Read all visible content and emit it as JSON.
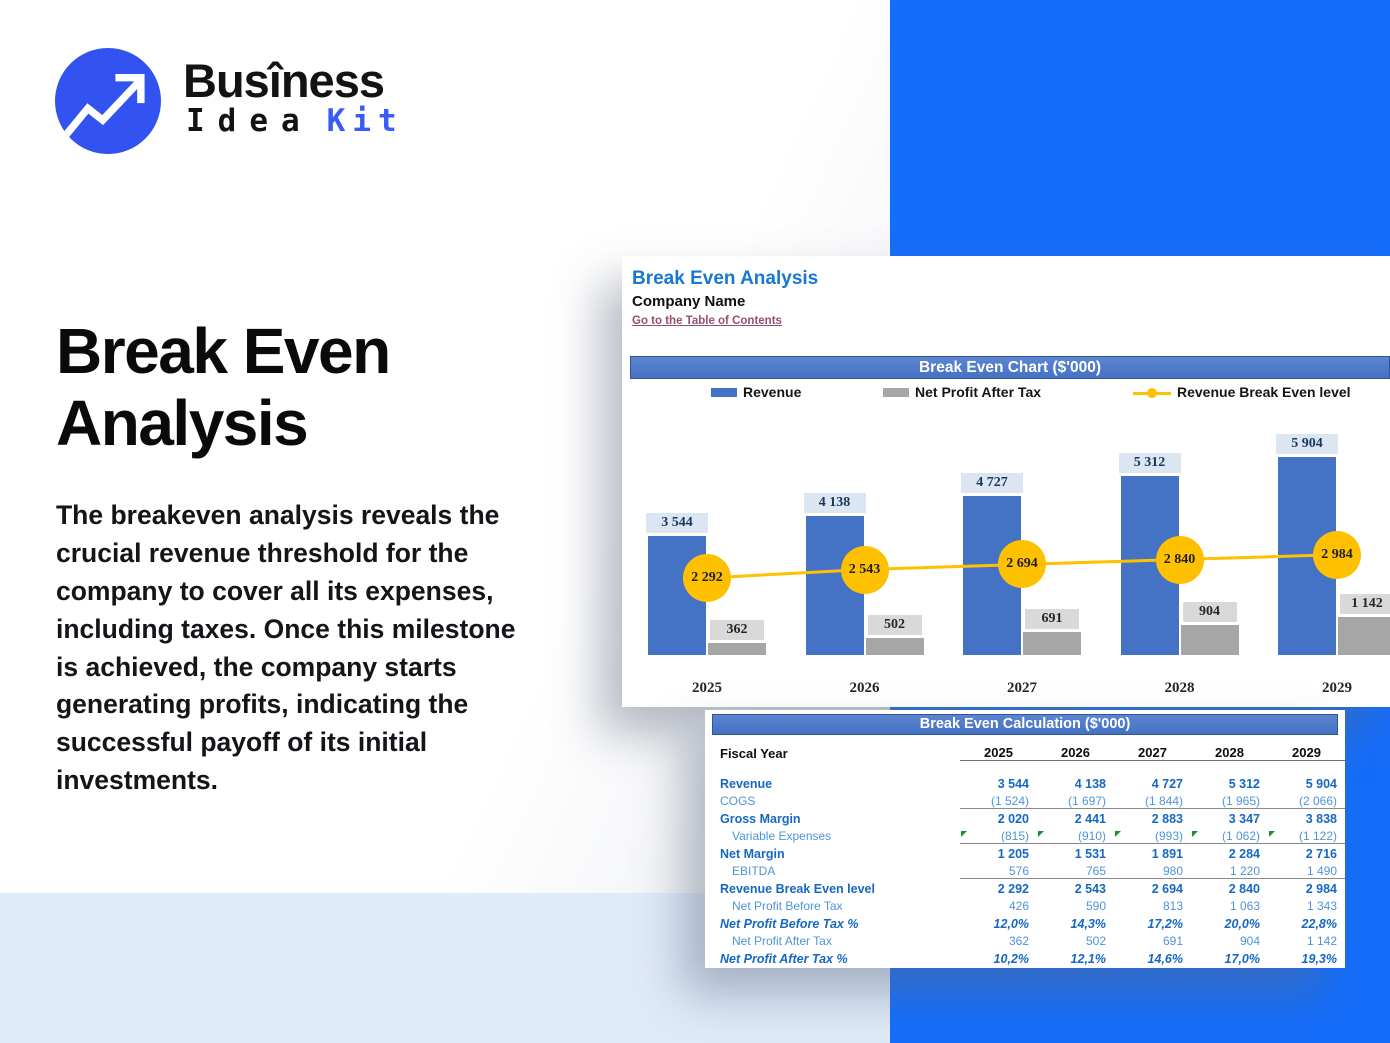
{
  "logo": {
    "brand_top": "Busîness",
    "brand_bottom_dark": "Idea",
    "brand_bottom_accent": "Kit",
    "icon": "trend-arrow-icon",
    "circle_color": "#3353f0",
    "accent_color": "#3b5bf6"
  },
  "hero": {
    "title_lines": [
      "Break Even",
      "Analysis"
    ],
    "description": "The breakeven analysis reveals the crucial revenue threshold for the company to cover all its expenses, including taxes. Once this milestone is achieved, the company starts generating profits, indicating the successful payoff of its initial investments."
  },
  "sheet": {
    "title": "Break Even Analysis",
    "subtitle": "Company Name",
    "link": "Go to the Table of Contents",
    "chart_header": "Break Even Chart ($'000)",
    "calc_header": "Break Even Calculation ($'000)"
  },
  "chart_data": {
    "type": "bar",
    "title": "Break Even Chart ($'000)",
    "categories": [
      "2025",
      "2026",
      "2027",
      "2028",
      "2029"
    ],
    "series": [
      {
        "name": "Revenue",
        "kind": "bar",
        "color": "#4472c4",
        "values": [
          3544,
          4138,
          4727,
          5312,
          5904
        ],
        "labels": [
          "3 544",
          "4 138",
          "4 727",
          "5 312",
          "5 904"
        ]
      },
      {
        "name": "Net Profit After Tax",
        "kind": "bar",
        "color": "#a6a6a6",
        "values": [
          362,
          502,
          691,
          904,
          1142
        ],
        "labels": [
          "362",
          "502",
          "691",
          "904",
          "1 142"
        ]
      },
      {
        "name": "Revenue Break Even level",
        "kind": "line",
        "color": "#ffc000",
        "values": [
          2292,
          2543,
          2694,
          2840,
          2984
        ],
        "labels": [
          "2 292",
          "2 543",
          "2 694",
          "2 840",
          "2 984"
        ]
      }
    ],
    "ylim": [
      0,
      6200
    ],
    "grid": false,
    "legend_position": "top"
  },
  "calc_table": {
    "fiscal_year_label": "Fiscal Year",
    "years": [
      "2025",
      "2026",
      "2027",
      "2028",
      "2029"
    ],
    "rows": [
      {
        "label": "Revenue",
        "style": "bold",
        "values": [
          "3 544",
          "4 138",
          "4 727",
          "5 312",
          "5 904"
        ]
      },
      {
        "label": "COGS",
        "style": "light",
        "underline": true,
        "values": [
          "(1 524)",
          "(1 697)",
          "(1 844)",
          "(1 965)",
          "(2 066)"
        ]
      },
      {
        "label": "Gross Margin",
        "style": "bold",
        "values": [
          "2 020",
          "2 441",
          "2 883",
          "3 347",
          "3 838"
        ]
      },
      {
        "label": "Variable Expenses",
        "style": "light",
        "indent": true,
        "underline": true,
        "flags": true,
        "values": [
          "(815)",
          "(910)",
          "(993)",
          "(1 062)",
          "(1 122)"
        ]
      },
      {
        "label": "Net Margin",
        "style": "bold",
        "values": [
          "1 205",
          "1 531",
          "1 891",
          "2 284",
          "2 716"
        ]
      },
      {
        "label": "EBITDA",
        "style": "light",
        "indent": true,
        "underline": true,
        "values": [
          "576",
          "765",
          "980",
          "1 220",
          "1 490"
        ]
      },
      {
        "label": "Revenue Break Even level",
        "style": "bold",
        "values": [
          "2 292",
          "2 543",
          "2 694",
          "2 840",
          "2 984"
        ]
      },
      {
        "label": "Net Profit Before Tax",
        "style": "light",
        "indent": true,
        "values": [
          "426",
          "590",
          "813",
          "1 063",
          "1 343"
        ]
      },
      {
        "label": "Net Profit Before Tax %",
        "style": "pct",
        "values": [
          "12,0%",
          "14,3%",
          "17,2%",
          "20,0%",
          "22,8%"
        ]
      },
      {
        "label": "Net Profit After Tax",
        "style": "light",
        "indent": true,
        "values": [
          "362",
          "502",
          "691",
          "904",
          "1 142"
        ]
      },
      {
        "label": "Net Profit After Tax %",
        "style": "pct",
        "values": [
          "10,2%",
          "12,1%",
          "14,6%",
          "17,0%",
          "19,3%"
        ]
      }
    ]
  },
  "colors": {
    "right_band_blue": "#146dfb",
    "bottom_light_blue": "#dfeafa",
    "excel_header_blue": "#4472c4",
    "excel_header_border": "#2f5597",
    "revenue_bar_blue": "#4472c4",
    "net_profit_bar_gray": "#a6a6a6",
    "break_even_gold": "#ffc000",
    "blue_label_bg": "#dce6f2",
    "gray_label_bg": "#d9d9d9",
    "table_bold_blue": "#1668c4",
    "table_light_blue": "#4e94d9",
    "sheet_title_blue": "#1777d3",
    "link_maroon": "#954f72",
    "logo_circle_blue": "#3353f0"
  }
}
